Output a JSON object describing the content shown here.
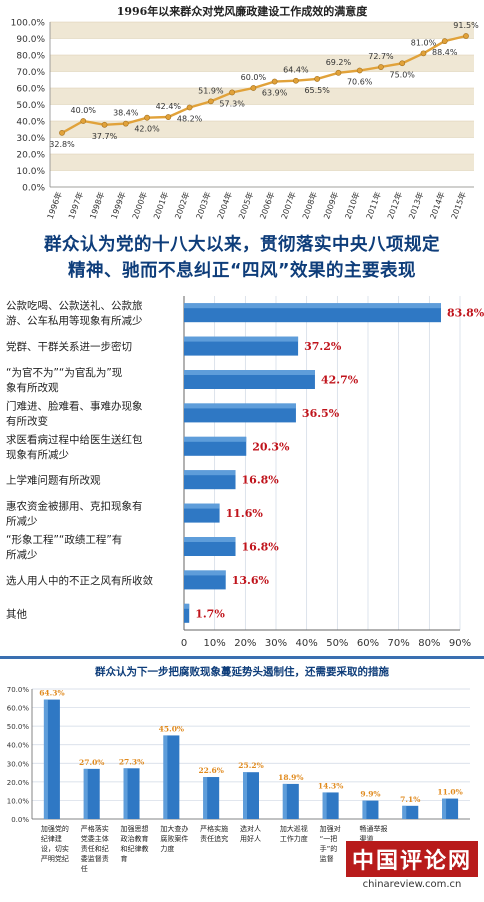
{
  "chart_data": [
    {
      "type": "line",
      "title": "1996年以来群众对党风廉政建设工作成效的满意度",
      "x": [
        "1996年",
        "1997年",
        "1998年",
        "1999年",
        "2000年",
        "2001年",
        "2002年",
        "2003年",
        "2004年",
        "2005年",
        "2006年",
        "2007年",
        "2008年",
        "2009年",
        "2010年",
        "2011年",
        "2012年",
        "2013年",
        "2014年",
        "2015年"
      ],
      "values": [
        32.8,
        40.0,
        37.7,
        38.4,
        42.0,
        42.4,
        48.2,
        51.9,
        57.3,
        60.0,
        63.9,
        64.4,
        65.5,
        69.2,
        70.6,
        72.7,
        75.0,
        81.0,
        88.4,
        91.5
      ],
      "data_labels": [
        "32.8%",
        "40.0%",
        "37.7%",
        "38.4%",
        "42.0%",
        "42.4%",
        "48.2%",
        "51.9%",
        "57.3%",
        "60.0%",
        "63.9%",
        "64.4%",
        "65.5%",
        "69.2%",
        "70.6%",
        "72.7%",
        "75.0%",
        "81.0%",
        "88.4%",
        "91.5%"
      ],
      "yticks": [
        "0.0%",
        "10.0%",
        "20.0%",
        "30.0%",
        "40.0%",
        "50.0%",
        "60.0%",
        "70.0%",
        "80.0%",
        "90.0%",
        "100.0%"
      ],
      "ylim": [
        0,
        100
      ],
      "line_color": "#e1a23a",
      "grid": true
    },
    {
      "type": "bar",
      "orientation": "horizontal",
      "title_lines": [
        "群众认为党的十八大以来，贯彻落实中央八项规定",
        "精神、驰而不息纠正“四风”效果的主要表现"
      ],
      "categories": [
        [
          "公款吃喝、公款送礼、公款旅",
          "游、公车私用等现象有所减少"
        ],
        [
          "党群、干群关系进一步密切"
        ],
        [
          "“为官不为”“为官乱为”现",
          "象有所改观"
        ],
        [
          "门难进、脸难看、事难办现象",
          "有所改变"
        ],
        [
          "求医看病过程中给医生送红包",
          "现象有所减少"
        ],
        [
          "上学难问题有所改观"
        ],
        [
          "惠农资金被挪用、克扣现象有",
          "所减少"
        ],
        [
          "“形象工程”“政绩工程”有",
          "所减少"
        ],
        [
          "选人用人中的不正之风有所收敛"
        ],
        [
          "其他"
        ]
      ],
      "values": [
        83.8,
        37.2,
        42.7,
        36.5,
        20.3,
        16.8,
        11.6,
        16.8,
        13.6,
        1.7
      ],
      "data_labels": [
        "83.8%",
        "37.2%",
        "42.7%",
        "36.5%",
        "20.3%",
        "16.8%",
        "11.6%",
        "16.8%",
        "13.6%",
        "1.7%"
      ],
      "xticks": [
        "0",
        "10%",
        "20%",
        "30%",
        "40%",
        "50%",
        "60%",
        "70%",
        "80%",
        "90%"
      ],
      "xlim": [
        0,
        90
      ],
      "bar_color": "#2f78c4",
      "label_color": "#c0141c"
    },
    {
      "type": "bar",
      "title": "群众认为下一步把腐败现象蔓延势头遏制住，还需要采取的措施",
      "categories": [
        [
          "加强党的",
          "纪律建",
          "设，切实",
          "严明党纪"
        ],
        [
          "严格落实",
          "党委主体",
          "责任和纪",
          "委监督责",
          "任"
        ],
        [
          "加强思想",
          "政治教育",
          "和纪律教",
          "育"
        ],
        [
          "加大查办",
          "腐败案件",
          "力度"
        ],
        [
          "严格实施",
          "责任追究"
        ],
        [
          "选对人",
          "用好人"
        ],
        [
          "加大巡视",
          "工作力度"
        ],
        [
          "加强对",
          "“一把",
          "手”的",
          "监督"
        ],
        [
          "畅通举报",
          "渠道"
        ],
        [],
        []
      ],
      "values": [
        64.3,
        27.0,
        27.3,
        45.0,
        22.6,
        25.2,
        18.9,
        14.3,
        9.9,
        7.1,
        11.0
      ],
      "data_labels": [
        "64.3%",
        "27.0%",
        "27.3%",
        "45.0%",
        "22.6%",
        "25.2%",
        "18.9%",
        "14.3%",
        "9.9%",
        "7.1%",
        "11.0%"
      ],
      "yticks": [
        "0.0%",
        "10.0%",
        "20.0%",
        "30.0%",
        "40.0%",
        "50.0%",
        "60.0%",
        "70.0%"
      ],
      "ylim": [
        0,
        70
      ],
      "bar_color": "#2f78c4",
      "label_color": "#e08a1e"
    }
  ],
  "watermark": {
    "logo_text": "中国评论网",
    "url": "chinareview.com.cn"
  }
}
